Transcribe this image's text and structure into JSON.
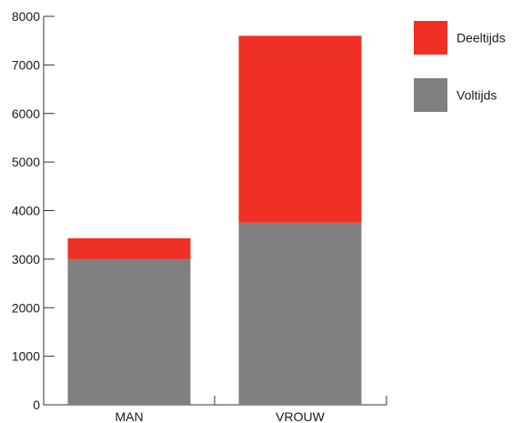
{
  "chart_data": {
    "type": "bar",
    "stacked": true,
    "categories": [
      "MAN",
      "VROUW"
    ],
    "series": [
      {
        "name": "Voltijds",
        "values": [
          3000,
          3750
        ],
        "color": "#808080"
      },
      {
        "name": "Deeltijds",
        "values": [
          430,
          3850
        ],
        "color": "#ee3124"
      }
    ],
    "ylim": [
      0,
      8000
    ],
    "yticks": [
      0,
      1000,
      2000,
      3000,
      4000,
      5000,
      6000,
      7000,
      8000
    ],
    "xlabel": "",
    "ylabel": "",
    "title": "",
    "grid": false,
    "legend": {
      "placement": "top-right",
      "order": [
        "Deeltijds",
        "Voltijds"
      ]
    }
  }
}
